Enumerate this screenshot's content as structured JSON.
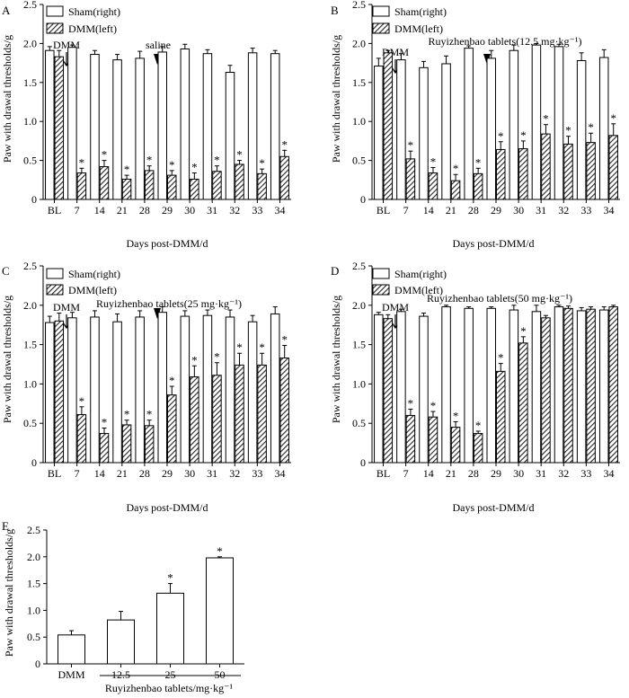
{
  "chart_data": [
    {
      "type": "bar",
      "panel": "A",
      "ylabel": "Paw with drawal thresholds/g",
      "xlabel": "Days post-DMM/d",
      "ylim": [
        0,
        2.5
      ],
      "yticks": [
        "0",
        "0.5",
        "1.0",
        "1.5",
        "2.0",
        "2.5"
      ],
      "categories": [
        "BL",
        "7",
        "14",
        "21",
        "28",
        "29",
        "30",
        "31",
        "32",
        "33",
        "34"
      ],
      "series": [
        {
          "name": "Sham(right)",
          "values": [
            1.91,
            1.95,
            1.86,
            1.79,
            1.81,
            1.89,
            1.93,
            1.87,
            1.63,
            1.88,
            1.87
          ],
          "errors": [
            0.05,
            0.03,
            0.05,
            0.07,
            0.09,
            0.07,
            0.06,
            0.05,
            0.09,
            0.06,
            0.04
          ]
        },
        {
          "name": "DMM(left)",
          "values": [
            1.83,
            0.34,
            0.42,
            0.26,
            0.37,
            0.31,
            0.26,
            0.36,
            0.45,
            0.33,
            0.55
          ],
          "errors": [
            0.08,
            0.06,
            0.08,
            0.05,
            0.06,
            0.06,
            0.08,
            0.07,
            0.05,
            0.06,
            0.08
          ]
        }
      ],
      "significant": [
        false,
        true,
        true,
        true,
        true,
        true,
        true,
        true,
        true,
        true,
        true
      ],
      "annotations": [
        {
          "text": "DMM",
          "category_index": 0.5,
          "kind": "arrow"
        },
        {
          "text": "saline",
          "category_index": 5,
          "kind": "triangle"
        }
      ],
      "legend": [
        "Sham(right)",
        "DMM(left)"
      ]
    },
    {
      "type": "bar",
      "panel": "B",
      "ylabel": "Paw with drawal thresholds/g",
      "xlabel": "Days post-DMM/d",
      "ylim": [
        0,
        2.5
      ],
      "yticks": [
        "0",
        "0.5",
        "1.0",
        "1.5",
        "2.0",
        "2.5"
      ],
      "categories": [
        "BL",
        "7",
        "14",
        "21",
        "28",
        "29",
        "30",
        "31",
        "32",
        "33",
        "34"
      ],
      "series": [
        {
          "name": "Sham(right)",
          "values": [
            1.71,
            1.79,
            1.69,
            1.74,
            1.94,
            1.81,
            1.91,
            1.98,
            1.96,
            1.78,
            1.82
          ],
          "errors": [
            0.1,
            0.08,
            0.08,
            0.1,
            0.03,
            0.1,
            0.07,
            0.02,
            0.03,
            0.1,
            0.1
          ]
        },
        {
          "name": "DMM(left)",
          "values": [
            1.88,
            0.52,
            0.34,
            0.24,
            0.33,
            0.64,
            0.65,
            0.84,
            0.71,
            0.73,
            0.82
          ],
          "errors": [
            0.03,
            0.1,
            0.07,
            0.08,
            0.07,
            0.1,
            0.1,
            0.12,
            0.1,
            0.12,
            0.15
          ]
        }
      ],
      "significant": [
        false,
        true,
        true,
        true,
        true,
        true,
        true,
        true,
        true,
        true,
        true
      ],
      "annotations": [
        {
          "text": "DMM",
          "category_index": 0.5,
          "kind": "arrow"
        },
        {
          "text": "Ruyizhenbao tablets(12.5 mg·kg⁻¹)",
          "category_index": 5,
          "kind": "triangle"
        }
      ],
      "legend": [
        "Sham(right)",
        "DMM(left)"
      ]
    },
    {
      "type": "bar",
      "panel": "C",
      "ylabel": "Paw with drawal thresholds/g",
      "xlabel": "Days post-DMM/d",
      "ylim": [
        0,
        2.5
      ],
      "yticks": [
        "0",
        "0.5",
        "1.0",
        "1.5",
        "2.0",
        "2.5"
      ],
      "categories": [
        "BL",
        "7",
        "14",
        "21",
        "28",
        "29",
        "30",
        "31",
        "32",
        "33",
        "34"
      ],
      "series": [
        {
          "name": "Sham(right)",
          "values": [
            1.78,
            1.84,
            1.85,
            1.79,
            1.85,
            1.91,
            1.86,
            1.87,
            1.85,
            1.79,
            1.89
          ],
          "errors": [
            0.08,
            0.07,
            0.08,
            0.1,
            0.08,
            0.07,
            0.07,
            0.07,
            0.09,
            0.08,
            0.09
          ]
        },
        {
          "name": "DMM(left)",
          "values": [
            1.8,
            0.61,
            0.37,
            0.48,
            0.47,
            0.86,
            1.09,
            1.11,
            1.24,
            1.24,
            1.33
          ],
          "errors": [
            0.1,
            0.1,
            0.07,
            0.06,
            0.07,
            0.11,
            0.14,
            0.16,
            0.15,
            0.15,
            0.16
          ]
        }
      ],
      "significant": [
        false,
        true,
        true,
        true,
        true,
        true,
        true,
        true,
        true,
        true,
        true
      ],
      "annotations": [
        {
          "text": "DMM",
          "category_index": 0.5,
          "kind": "arrow"
        },
        {
          "text": "Ruyizhenbao tablets(25 mg·kg⁻¹)",
          "category_index": 5,
          "kind": "triangle"
        }
      ],
      "legend": [
        "Sham(right)",
        "DMM(left)"
      ]
    },
    {
      "type": "bar",
      "panel": "D",
      "ylabel": "Paw with drawal thresholds/g",
      "xlabel": "Days post-DMM/d",
      "ylim": [
        0,
        2.5
      ],
      "yticks": [
        "0",
        "0.5",
        "1.0",
        "1.5",
        "2.0",
        "2.5"
      ],
      "categories": [
        "BL",
        "7",
        "14",
        "21",
        "28",
        "29",
        "30",
        "31",
        "32",
        "33",
        "34"
      ],
      "series": [
        {
          "name": "Sham(right)",
          "values": [
            1.88,
            1.92,
            1.86,
            1.98,
            1.96,
            1.96,
            1.94,
            1.92,
            1.98,
            1.93,
            1.94
          ],
          "errors": [
            0.03,
            0.03,
            0.04,
            0.02,
            0.02,
            0.02,
            0.06,
            0.08,
            0.02,
            0.04,
            0.04
          ]
        },
        {
          "name": "DMM(left)",
          "values": [
            1.83,
            0.6,
            0.58,
            0.45,
            0.37,
            1.16,
            1.52,
            1.84,
            1.96,
            1.95,
            1.98
          ],
          "errors": [
            0.05,
            0.08,
            0.07,
            0.07,
            0.03,
            0.1,
            0.08,
            0.03,
            0.03,
            0.03,
            0.02
          ]
        }
      ],
      "significant": [
        false,
        true,
        true,
        true,
        true,
        true,
        true,
        false,
        false,
        false,
        false
      ],
      "annotations": [
        {
          "text": "DMM",
          "category_index": 0.5,
          "kind": "arrow"
        },
        {
          "text": "Ruyizhenbao tablets(50 mg·kg⁻¹)",
          "category_index": 5,
          "kind": "triangle"
        }
      ],
      "legend": [
        "Sham(right)",
        "DMM(left)"
      ]
    },
    {
      "type": "bar",
      "panel": "E",
      "ylabel": "Paw with drawal thresholds/g",
      "xlabel": "Ruyizhenbao tablets/mg·kg⁻¹",
      "ylim": [
        0,
        2.5
      ],
      "yticks": [
        "0",
        "0.5",
        "1.0",
        "1.5",
        "2.0",
        "2.5"
      ],
      "categories": [
        "DMM",
        "12.5",
        "25",
        "50"
      ],
      "series": [
        {
          "name": "DMM(left)",
          "values": [
            0.54,
            0.82,
            1.32,
            1.98
          ],
          "errors": [
            0.08,
            0.16,
            0.18,
            0.02
          ]
        }
      ],
      "significant": [
        false,
        false,
        true,
        true
      ]
    }
  ]
}
